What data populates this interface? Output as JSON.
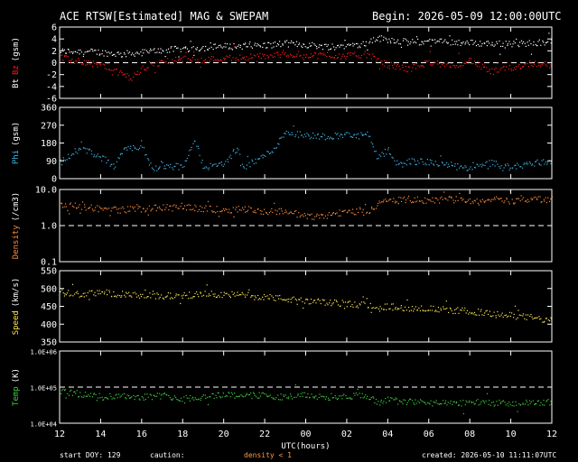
{
  "header": {
    "title": "ACE RTSW[Estimated] MAG & SWEPAM",
    "begin": "Begin: 2026-05-09 12:00:00UTC"
  },
  "footer": {
    "start_doy": "start DOY: 129",
    "caution": "caution:",
    "density_note": "density < 1",
    "created": "created: 2026-05-10 11:11:07UTC"
  },
  "colors": {
    "bt": "#ffffff",
    "bz": "#ff1a1a",
    "phi": "#3fb6e6",
    "density": "#ff8c3c",
    "speed": "#ffe650",
    "temp": "#3fcc3f",
    "axes": "#ffffff"
  },
  "chart_data": {
    "type": "scatter",
    "x": {
      "label": "UTC(hours)",
      "tick_labels": [
        "12",
        "14",
        "16",
        "18",
        "20",
        "22",
        "00",
        "02",
        "04",
        "06",
        "08",
        "10",
        "12"
      ],
      "range_hours": [
        0,
        24
      ]
    },
    "panels": [
      {
        "id": "mag",
        "ylabel_parts": [
          {
            "text": "Bt",
            "color": "#ffffff"
          },
          {
            "text": "Bz",
            "color": "#ff1a1a"
          },
          {
            "text": "(gsm)",
            "color": "#ffffff"
          }
        ],
        "ylim": [
          -6,
          6
        ],
        "yticks": [
          -6,
          -4,
          -2,
          0,
          2,
          4,
          6
        ],
        "ytick_labels": [
          "-6",
          "-4",
          "-2",
          "0",
          "2",
          "4",
          "6"
        ],
        "dashed_at": [
          0
        ],
        "series": [
          {
            "name": "Bt",
            "color": "#ffffff",
            "x": [
              0,
              1,
              2,
              3,
              4,
              5,
              6,
              7,
              8,
              9,
              10,
              11,
              12,
              13,
              14,
              15,
              15.5,
              16,
              17,
              18,
              19,
              20,
              21,
              22,
              23,
              24
            ],
            "y": [
              2.0,
              2.0,
              1.8,
              1.5,
              1.8,
              2.2,
              2.4,
              2.6,
              2.8,
              2.9,
              3.0,
              3.3,
              3.1,
              2.8,
              3.0,
              3.3,
              4.2,
              4.0,
              3.5,
              3.6,
              3.6,
              3.4,
              3.3,
              3.2,
              3.4,
              3.7
            ]
          },
          {
            "name": "Bz",
            "color": "#ff1a1a",
            "x": [
              0,
              0.5,
              1,
              2,
              3,
              3.5,
              4,
              5,
              6,
              7,
              8,
              9,
              10,
              11,
              12,
              13,
              14,
              15,
              15.5,
              16,
              17,
              18,
              19,
              20,
              21,
              22,
              23,
              24
            ],
            "y": [
              1.0,
              0.5,
              0.3,
              -0.3,
              -1.8,
              -2.5,
              -1.0,
              0.2,
              0.7,
              0.6,
              0.8,
              1.0,
              1.2,
              1.5,
              1.4,
              1.3,
              1.2,
              1.5,
              0.5,
              -0.3,
              -1.0,
              0.2,
              -0.6,
              0.5,
              -1.5,
              -0.8,
              0.0,
              -0.3
            ]
          }
        ]
      },
      {
        "id": "phi",
        "ylabel_parts": [
          {
            "text": "Phi",
            "color": "#3fb6e6"
          },
          {
            "text": "(gsm)",
            "color": "#ffffff"
          }
        ],
        "ylim": [
          0,
          360
        ],
        "yticks": [
          0,
          90,
          180,
          270,
          360
        ],
        "ytick_labels": [
          "0",
          "90",
          "180",
          "270",
          "360"
        ],
        "dashed_at": [],
        "series": [
          {
            "name": "Phi",
            "color": "#3fb6e6",
            "x": [
              0,
              1,
              2,
              2.7,
              3,
              4,
              4.5,
              5,
              6,
              6.6,
              7,
              8,
              8.5,
              9,
              10,
              10.5,
              11,
              12,
              13,
              14,
              14.5,
              15,
              15.5,
              16,
              16.5,
              17,
              18,
              19,
              20,
              21,
              22,
              23,
              24
            ],
            "y": [
              80,
              160,
              110,
              55,
              140,
              165,
              50,
              70,
              60,
              200,
              60,
              75,
              140,
              60,
              120,
              160,
              240,
              220,
              215,
              225,
              215,
              230,
              100,
              150,
              70,
              90,
              85,
              70,
              50,
              80,
              60,
              80,
              90
            ]
          }
        ]
      },
      {
        "id": "density",
        "ylabel_parts": [
          {
            "text": "Density",
            "color": "#ff8c3c"
          },
          {
            "text": "(/cm3)",
            "color": "#ffffff"
          }
        ],
        "scale": "log",
        "ylim": [
          0.1,
          10.0
        ],
        "yticks": [
          0.1,
          1.0,
          10.0
        ],
        "ytick_labels": [
          "0.1",
          "1.0",
          "10.0"
        ],
        "dashed_at": [
          1.0
        ],
        "series": [
          {
            "name": "Density",
            "color": "#ff8c3c",
            "x": [
              0,
              1,
              2,
              3,
              4,
              5,
              6,
              7,
              8,
              9,
              10,
              11,
              12,
              13,
              14,
              15,
              15.5,
              16,
              17,
              18,
              19,
              20,
              21,
              22,
              23,
              24
            ],
            "y": [
              4.0,
              3.5,
              3.0,
              2.8,
              3.0,
              3.2,
              3.5,
              3.0,
              2.8,
              3.0,
              2.5,
              2.6,
              1.8,
              2.0,
              2.5,
              2.5,
              4.0,
              5.0,
              5.5,
              5.0,
              5.5,
              5.0,
              5.5,
              5.0,
              5.5,
              5.5
            ]
          }
        ]
      },
      {
        "id": "speed",
        "ylabel_parts": [
          {
            "text": "Speed",
            "color": "#ffe650"
          },
          {
            "text": "(km/s)",
            "color": "#ffffff"
          }
        ],
        "ylim": [
          350,
          550
        ],
        "yticks": [
          350,
          400,
          450,
          500,
          550
        ],
        "ytick_labels": [
          "350",
          "400",
          "450",
          "500",
          "550"
        ],
        "dashed_at": [],
        "series": [
          {
            "name": "Speed",
            "color": "#ffe650",
            "x": [
              0,
              1,
              2,
              3,
              4,
              5,
              6,
              7,
              8,
              9,
              10,
              11,
              12,
              13,
              14,
              15,
              16,
              17,
              18,
              19,
              20,
              21,
              22,
              23,
              24
            ],
            "y": [
              490,
              485,
              490,
              485,
              480,
              480,
              482,
              485,
              485,
              482,
              478,
              472,
              465,
              462,
              458,
              455,
              450,
              447,
              445,
              440,
              438,
              430,
              425,
              420,
              410
            ]
          }
        ]
      },
      {
        "id": "temp",
        "ylabel_parts": [
          {
            "text": "Temp",
            "color": "#3fcc3f"
          },
          {
            "text": "(K)",
            "color": "#ffffff"
          }
        ],
        "scale": "log",
        "ylim": [
          10000,
          1000000
        ],
        "yticks": [
          10000,
          100000,
          1000000
        ],
        "ytick_labels": [
          "1.0E+04",
          "1.0E+05",
          "1.0E+06"
        ],
        "dashed_at": [
          100000
        ],
        "series": [
          {
            "name": "Temp",
            "color": "#3fcc3f",
            "x": [
              0,
              1,
              2,
              3,
              4,
              5,
              6,
              7,
              8,
              9,
              10,
              11,
              12,
              13,
              14,
              15,
              15.5,
              16,
              17,
              18,
              19,
              20,
              21,
              22,
              23,
              24
            ],
            "y": [
              80000,
              65000,
              55000,
              60000,
              55000,
              60000,
              50000,
              55000,
              65000,
              60000,
              60000,
              55000,
              60000,
              55000,
              58000,
              60000,
              35000,
              45000,
              40000,
              38000,
              35000,
              40000,
              38000,
              35000,
              38000,
              40000
            ]
          }
        ]
      }
    ]
  }
}
